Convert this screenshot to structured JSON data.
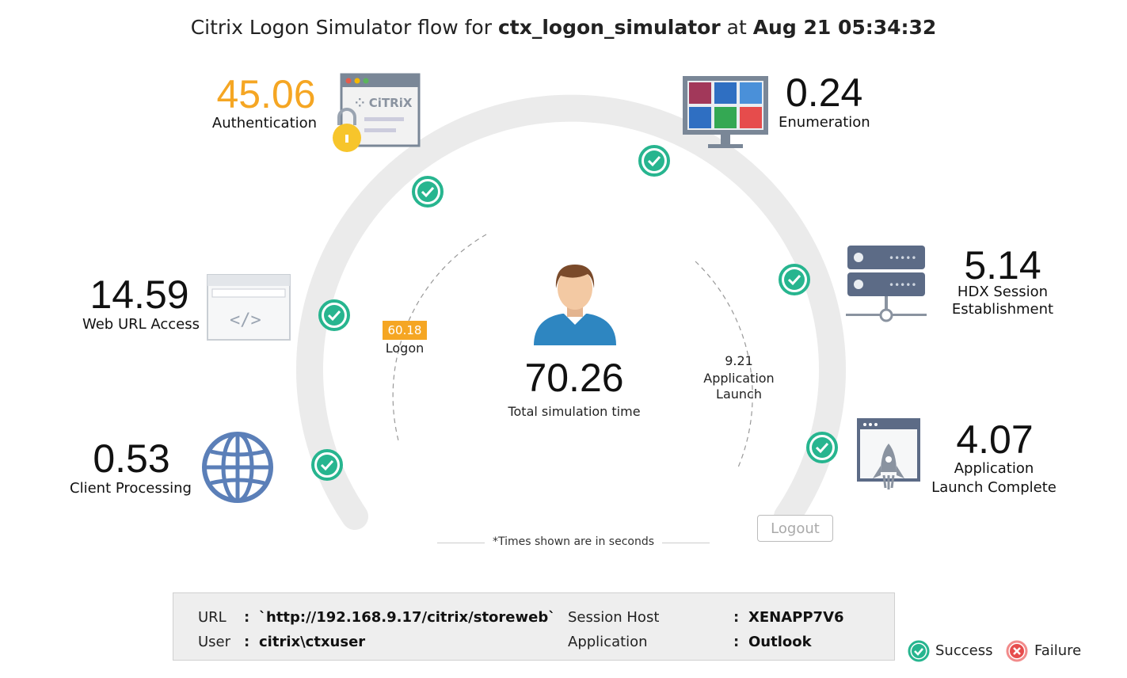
{
  "title": {
    "prefix": "Citrix Logon Simulator flow for",
    "name": "ctx_logon_simulator",
    "mid": "at",
    "time": "Aug 21 05:34:32"
  },
  "stages": {
    "authentication": {
      "value": "45.06",
      "label": "Authentication",
      "icon": "citrix-login-window-icon"
    },
    "enumeration": {
      "value": "0.24",
      "label": "Enumeration",
      "icon": "app-grid-monitor-icon"
    },
    "web_url_access": {
      "value": "14.59",
      "label": "Web URL Access",
      "icon": "browser-code-icon"
    },
    "hdx_session": {
      "value": "5.14",
      "label_line1": "HDX Session",
      "label_line2": "Establishment",
      "icon": "server-network-icon"
    },
    "client_processing": {
      "value": "0.53",
      "label": "Client Processing",
      "icon": "globe-icon"
    },
    "app_launch_complete": {
      "value": "4.07",
      "label_line1": "Application",
      "label_line2": "Launch Complete",
      "icon": "rocket-window-icon"
    }
  },
  "center": {
    "logon_value": "60.18",
    "logon_label": "Logon",
    "total_value": "70.26",
    "total_label": "Total simulation time",
    "app_launch_value": "9.21",
    "app_launch_line1": "Application",
    "app_launch_line2": "Launch"
  },
  "logout_label": "Logout",
  "note": "*Times shown are in seconds",
  "info": {
    "url_key": "URL",
    "url_value": "`http://192.168.9.17/citrix/storeweb`",
    "user_key": "User",
    "user_value": "citrix\\ctxuser",
    "host_key": "Session Host",
    "host_value": "XENAPP7V6",
    "app_key": "Application",
    "app_value": "Outlook",
    "colon": ":"
  },
  "legend": {
    "success": "Success",
    "failure": "Failure"
  },
  "colors": {
    "orange": "#f5a623",
    "success": "#27b58f",
    "failure": "#e64c4c",
    "arc": "#ebebeb",
    "icon_blue": "#5b7fb8"
  }
}
